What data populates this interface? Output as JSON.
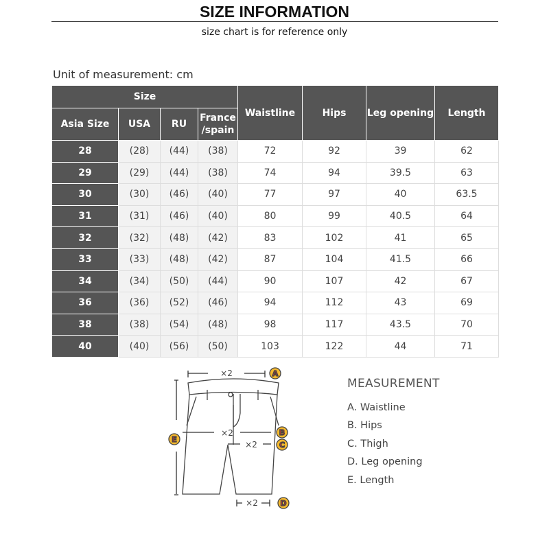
{
  "header": {
    "title": "SIZE INFORMATION",
    "subtitle": "size chart is for reference only"
  },
  "unit_label": "Unit of measurement: cm",
  "table": {
    "group_header": "Size",
    "columns": [
      "Asia Size",
      "USA",
      "RU",
      "France\n/spain",
      "Waistline",
      "Hips",
      "Leg opening",
      "Length"
    ],
    "rows": [
      [
        "28",
        "(28)",
        "(44)",
        "(38)",
        "72",
        "92",
        "39",
        "62"
      ],
      [
        "29",
        "(29)",
        "(44)",
        "(38)",
        "74",
        "94",
        "39.5",
        "63"
      ],
      [
        "30",
        "(30)",
        "(46)",
        "(40)",
        "77",
        "97",
        "40",
        "63.5"
      ],
      [
        "31",
        "(31)",
        "(46)",
        "(40)",
        "80",
        "99",
        "40.5",
        "64"
      ],
      [
        "32",
        "(32)",
        "(48)",
        "(42)",
        "83",
        "102",
        "41",
        "65"
      ],
      [
        "33",
        "(33)",
        "(48)",
        "(42)",
        "87",
        "104",
        "41.5",
        "66"
      ],
      [
        "34",
        "(34)",
        "(50)",
        "(44)",
        "90",
        "107",
        "42",
        "67"
      ],
      [
        "36",
        "(36)",
        "(52)",
        "(46)",
        "94",
        "112",
        "43",
        "69"
      ],
      [
        "38",
        "(38)",
        "(54)",
        "(48)",
        "98",
        "117",
        "43.5",
        "70"
      ],
      [
        "40",
        "(40)",
        "(56)",
        "(50)",
        "103",
        "122",
        "44",
        "71"
      ]
    ]
  },
  "diagram": {
    "multiplier": "×2",
    "markers": [
      "A",
      "B",
      "C",
      "D",
      "E"
    ],
    "marker_color": "#f5b82e",
    "marker_text_color": "#d9362b"
  },
  "legend": {
    "title": "MEASUREMENT",
    "items": [
      "A. Waistline",
      "B. Hips",
      "C. Thigh",
      "D. Leg opening",
      "E. Length"
    ]
  }
}
